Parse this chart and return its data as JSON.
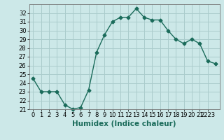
{
  "x": [
    0,
    1,
    2,
    3,
    4,
    5,
    6,
    7,
    8,
    9,
    10,
    11,
    12,
    13,
    14,
    15,
    16,
    17,
    18,
    19,
    20,
    21,
    22,
    23
  ],
  "y": [
    24.5,
    23.0,
    23.0,
    23.0,
    21.5,
    21.0,
    21.2,
    23.2,
    27.5,
    29.5,
    31.0,
    31.5,
    31.5,
    32.5,
    31.5,
    31.2,
    31.2,
    30.0,
    29.0,
    28.5,
    29.0,
    28.5,
    26.5,
    26.2
  ],
  "line_color": "#1a6b5a",
  "marker": "D",
  "markersize": 2.5,
  "bg_color": "#cce8e8",
  "grid_color": "#aacccc",
  "xlabel": "Humidex (Indice chaleur)",
  "ylim": [
    21,
    33
  ],
  "xlim": [
    -0.5,
    23.5
  ],
  "yticks": [
    21,
    22,
    23,
    24,
    25,
    26,
    27,
    28,
    29,
    30,
    31,
    32
  ],
  "xtick_positions": [
    0,
    1,
    2,
    3,
    4,
    5,
    6,
    7,
    8,
    9,
    10,
    11,
    12,
    13,
    14,
    15,
    16,
    17,
    18,
    19,
    20,
    21,
    22
  ],
  "xtick_labels": [
    "0",
    "1",
    "2",
    "3",
    "4",
    "5",
    "6",
    "7",
    "8",
    "9",
    "10",
    "11",
    "12",
    "13",
    "14",
    "15",
    "16",
    "17",
    "18",
    "19",
    "20",
    "21",
    "2223"
  ],
  "label_fontsize": 7.5,
  "tick_fontsize": 6
}
